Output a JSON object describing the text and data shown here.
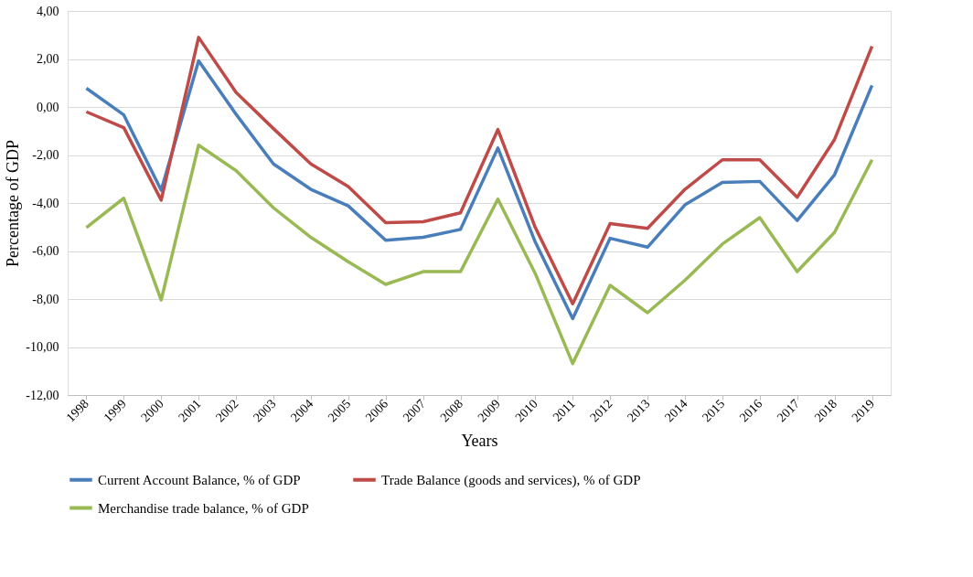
{
  "chart_data": {
    "type": "line",
    "xlabel": "Years",
    "ylabel": "Percentage of GDP",
    "categories": [
      "1998",
      "1999",
      "2000",
      "2001",
      "2002",
      "2003",
      "2004",
      "2005",
      "2006",
      "2007",
      "2008",
      "2009",
      "2010",
      "2011",
      "2012",
      "2013",
      "2014",
      "2015",
      "2016",
      "2017",
      "2018",
      "2019"
    ],
    "series": [
      {
        "name": "Current Account Balance, % of GDP",
        "color": "#4a7ebb",
        "values": [
          0.78,
          -0.33,
          -3.47,
          1.92,
          -0.3,
          -2.37,
          -3.43,
          -4.12,
          -5.55,
          -5.43,
          -5.1,
          -1.71,
          -5.63,
          -8.82,
          -5.47,
          -5.84,
          -4.08,
          -3.14,
          -3.1,
          -4.73,
          -2.82,
          0.9
        ]
      },
      {
        "name": "Trade Balance (goods and services), % of GDP",
        "color": "#be4b48",
        "values": [
          -0.2,
          -0.86,
          -3.88,
          2.9,
          0.61,
          -0.9,
          -2.37,
          -3.31,
          -4.82,
          -4.78,
          -4.41,
          -0.94,
          -5.02,
          -8.2,
          -4.86,
          -5.06,
          -3.43,
          -2.2,
          -2.2,
          -3.76,
          -1.35,
          2.53
        ]
      },
      {
        "name": "Merchandise trade balance, % of GDP",
        "color": "#98b954",
        "values": [
          -5.02,
          -3.8,
          -8.04,
          -1.59,
          -2.65,
          -4.2,
          -5.43,
          -6.45,
          -7.39,
          -6.86,
          -6.86,
          -3.84,
          -6.94,
          -10.69,
          -7.43,
          -8.57,
          -7.22,
          -5.71,
          -4.61,
          -6.86,
          -5.22,
          -2.2
        ]
      }
    ],
    "ylim": [
      -12,
      4
    ],
    "yticks": [
      {
        "value": -12,
        "label": "-12,00"
      },
      {
        "value": -10,
        "label": "-10,00"
      },
      {
        "value": -8,
        "label": "-8,00"
      },
      {
        "value": -6,
        "label": "-6,00"
      },
      {
        "value": -4,
        "label": "-4,00"
      },
      {
        "value": -2,
        "label": "-2,00"
      },
      {
        "value": 0,
        "label": "0,00"
      },
      {
        "value": 2,
        "label": "2,00"
      },
      {
        "value": 4,
        "label": "4,00"
      }
    ],
    "grid": "y",
    "legend": "bottom",
    "marker": "none",
    "line_style": "solid"
  }
}
